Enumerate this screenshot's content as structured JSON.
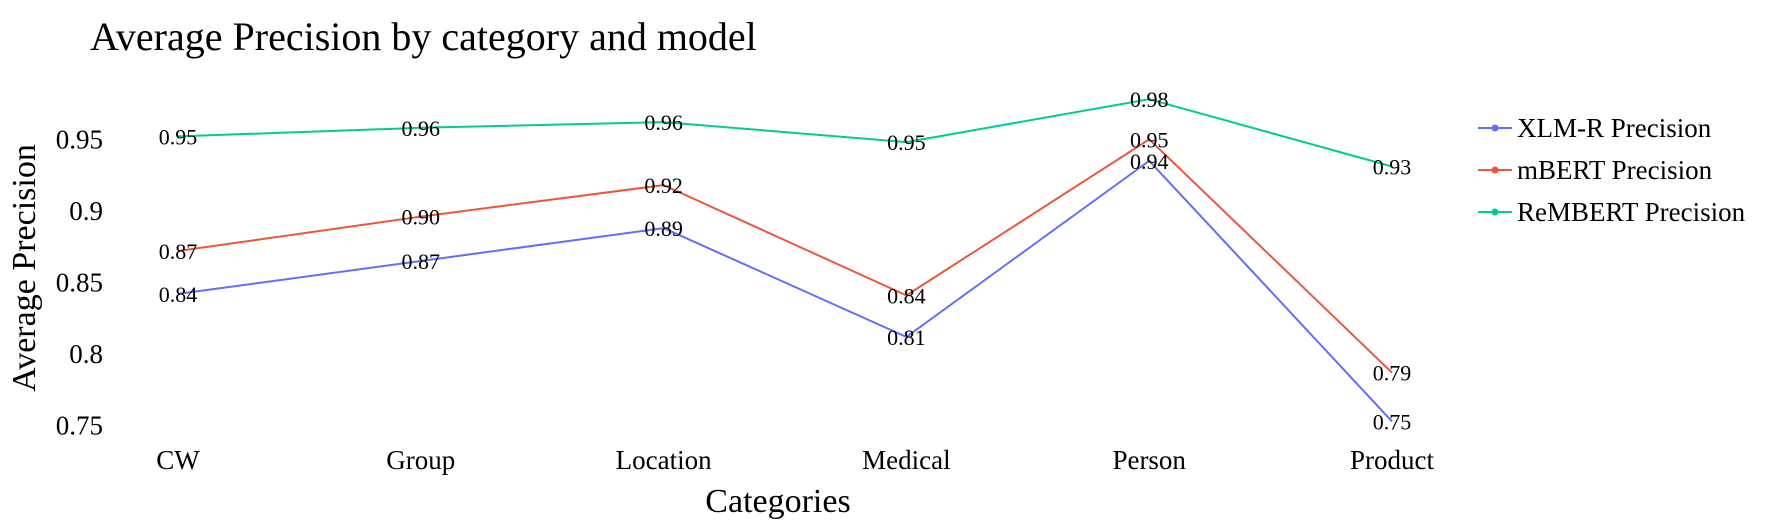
{
  "chart_data": {
    "type": "line",
    "title": "Average Precision by category and model",
    "xlabel": "Categories",
    "ylabel": "Average Precision",
    "categories": [
      "CW",
      "Group",
      "Location",
      "Medical",
      "Person",
      "Product"
    ],
    "ylim": [
      0.74,
      0.99
    ],
    "yticks": [
      0.75,
      0.8,
      0.85,
      0.9,
      0.95
    ],
    "ytick_labels": [
      "0.75",
      "0.8",
      "0.85",
      "0.9",
      "0.95"
    ],
    "grid": false,
    "legend_position": "top-right",
    "series": [
      {
        "name": "XLM-R Precision",
        "color": "#636efa",
        "values": [
          0.842,
          0.865,
          0.888,
          0.812,
          0.935,
          0.753
        ],
        "labels": [
          "0.84",
          "0.87",
          "0.89",
          "0.81",
          "0.94",
          "0.75"
        ]
      },
      {
        "name": "mBERT Precision",
        "color": "#ef553b",
        "values": [
          0.872,
          0.896,
          0.918,
          0.841,
          0.95,
          0.787
        ],
        "labels": [
          "0.87",
          "0.90",
          "0.92",
          "0.84",
          "0.95",
          "0.79"
        ]
      },
      {
        "name": "ReMBERT Precision",
        "color": "#00cc96",
        "values": [
          0.952,
          0.958,
          0.962,
          0.948,
          0.978,
          0.931
        ],
        "labels": [
          "0.95",
          "0.96",
          "0.96",
          "0.95",
          "0.98",
          "0.93"
        ]
      }
    ]
  }
}
